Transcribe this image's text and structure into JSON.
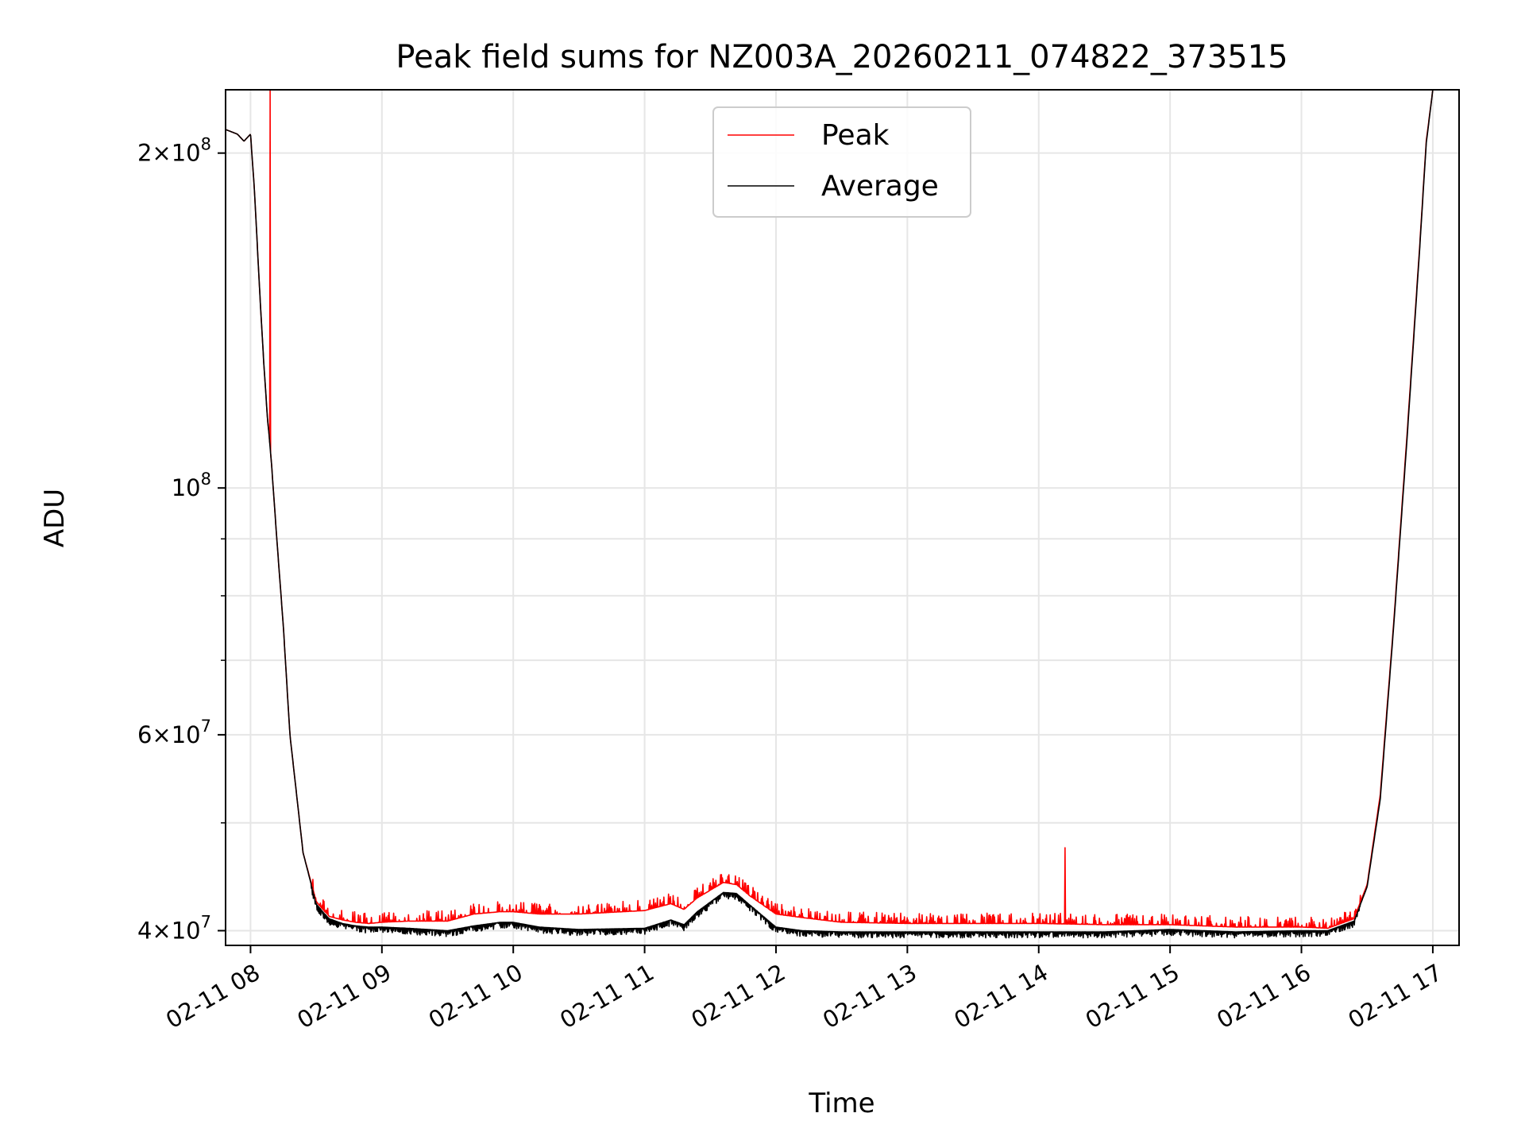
{
  "chart_data": {
    "type": "line",
    "title": "Peak field sums for NZ003A_20260211_074822_373515",
    "xlabel": "Time",
    "ylabel": "ADU",
    "x_unit": "hours since 2026-02-11 00:00",
    "xlim": [
      7.81,
      17.2
    ],
    "ylim": [
      38800000,
      228000000
    ],
    "yscale": "log",
    "grid": true,
    "legend_position": "top-center",
    "x_ticks": [
      {
        "value": 8,
        "label": "02-11 08"
      },
      {
        "value": 9,
        "label": "02-11 09"
      },
      {
        "value": 10,
        "label": "02-11 10"
      },
      {
        "value": 11,
        "label": "02-11 11"
      },
      {
        "value": 12,
        "label": "02-11 12"
      },
      {
        "value": 13,
        "label": "02-11 13"
      },
      {
        "value": 14,
        "label": "02-11 14"
      },
      {
        "value": 15,
        "label": "02-11 15"
      },
      {
        "value": 16,
        "label": "02-11 16"
      },
      {
        "value": 17,
        "label": "02-11 17"
      }
    ],
    "y_major_ticks": [
      {
        "value": 40000000,
        "base": "4×10",
        "exp": "7"
      },
      {
        "value": 60000000,
        "base": "6×10",
        "exp": "7"
      },
      {
        "value": 100000000,
        "base": "10",
        "exp": "8"
      },
      {
        "value": 200000000,
        "base": "2×10",
        "exp": "8"
      }
    ],
    "y_minor_ticks": [
      50000000,
      70000000,
      80000000,
      90000000
    ],
    "series": [
      {
        "name": "Peak",
        "color": "#ff0000",
        "noise_level": 0.022,
        "spikes": [
          {
            "x": 8.15,
            "y": 228000000
          },
          {
            "x": 14.2,
            "y": 47500000
          }
        ],
        "x": [
          7.81,
          7.9,
          7.95,
          8.0,
          8.03,
          8.07,
          8.1,
          8.13,
          8.14,
          8.16,
          8.2,
          8.25,
          8.3,
          8.4,
          8.5,
          8.55,
          8.6,
          8.7,
          8.8,
          8.9,
          9.0,
          9.2,
          9.5,
          9.7,
          9.9,
          10.0,
          10.2,
          10.5,
          11.0,
          11.2,
          11.3,
          11.4,
          11.6,
          11.7,
          11.8,
          12.0,
          12.2,
          12.5,
          13.0,
          13.5,
          14.0,
          14.5,
          15.0,
          15.5,
          16.0,
          16.2,
          16.4,
          16.5,
          16.6,
          16.7,
          16.8,
          16.9,
          16.95,
          17.0
        ],
        "y": [
          210000000,
          208000000,
          205000000,
          208000000,
          185000000,
          150000000,
          130000000,
          115000000,
          112000000,
          105000000,
          90000000,
          75000000,
          60000000,
          47000000,
          42500000,
          41800000,
          41200000,
          40900000,
          40700000,
          40600000,
          40700000,
          40800000,
          40800000,
          41400000,
          41600000,
          41600000,
          41400000,
          41400000,
          41700000,
          42300000,
          41800000,
          42800000,
          44200000,
          44000000,
          43000000,
          41400000,
          41100000,
          40700000,
          40600000,
          40600000,
          40600000,
          40500000,
          40500000,
          40300000,
          40300000,
          40200000,
          41000000,
          44000000,
          53000000,
          75000000,
          110000000,
          165000000,
          205000000,
          228000000
        ]
      },
      {
        "name": "Average",
        "color": "#000000",
        "noise_level": 0.009,
        "spikes": [],
        "x": [
          7.81,
          7.9,
          7.95,
          8.0,
          8.03,
          8.07,
          8.1,
          8.13,
          8.14,
          8.16,
          8.2,
          8.25,
          8.3,
          8.4,
          8.5,
          8.55,
          8.6,
          8.7,
          8.8,
          8.9,
          9.0,
          9.2,
          9.5,
          9.7,
          9.9,
          10.0,
          10.2,
          10.5,
          11.0,
          11.2,
          11.3,
          11.4,
          11.6,
          11.7,
          11.8,
          12.0,
          12.2,
          12.5,
          13.0,
          13.5,
          14.0,
          14.5,
          15.0,
          15.5,
          16.0,
          16.2,
          16.4,
          16.5,
          16.6,
          16.7,
          16.8,
          16.9,
          16.95,
          17.0
        ],
        "y": [
          210000000,
          208000000,
          205000000,
          208000000,
          185000000,
          150000000,
          130000000,
          115000000,
          112000000,
          105000000,
          90000000,
          75000000,
          60000000,
          47000000,
          42300000,
          41600000,
          41000000,
          40600000,
          40400000,
          40300000,
          40300000,
          40200000,
          40000000,
          40400000,
          40700000,
          40700000,
          40300000,
          40100000,
          40200000,
          40900000,
          40500000,
          41600000,
          43300000,
          43200000,
          42200000,
          40300000,
          40000000,
          39900000,
          39900000,
          39900000,
          39900000,
          39900000,
          40100000,
          39900000,
          40000000,
          40000000,
          40800000,
          43800000,
          52500000,
          74500000,
          109000000,
          164000000,
          204000000,
          228000000
        ]
      }
    ]
  }
}
